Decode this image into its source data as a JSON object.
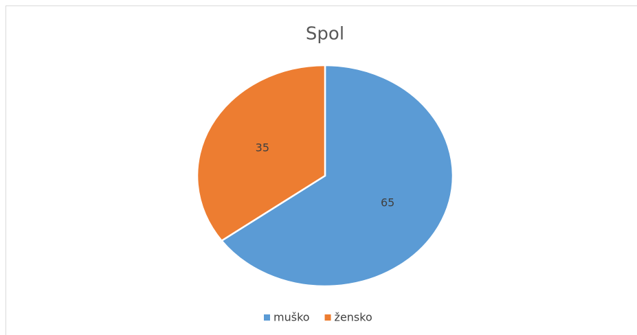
{
  "chart_data": {
    "type": "pie",
    "title": "Spol",
    "categories": [
      "muško",
      "žensko"
    ],
    "values": [
      65,
      35
    ],
    "colors": [
      "#5b9bd5",
      "#ed7d31"
    ],
    "legend": "bottom"
  }
}
